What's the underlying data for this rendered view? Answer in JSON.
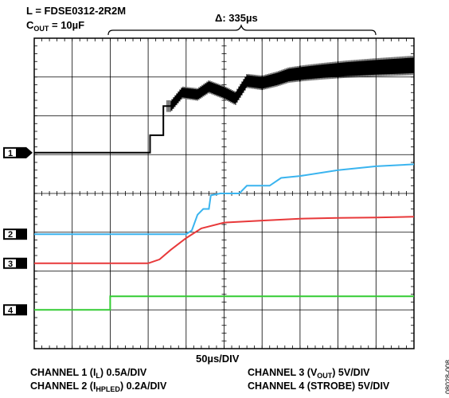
{
  "annotations": {
    "inductor": "L = FDSE0312-2R2M",
    "cout_prefix": "C",
    "cout_sub": "OUT",
    "cout_suffix": " = 10µF",
    "delta": "Δ: 335µs"
  },
  "time_scale": "50µs/DIV",
  "channel_scales": {
    "ch1": {
      "pre": "CHANNEL 1 (I",
      "sub": "L",
      "post": ") 0.5A/DIV"
    },
    "ch2": {
      "pre": "CHANNEL 2 (I",
      "sub": "HPLED",
      "post": ") 0.2A/DIV"
    },
    "ch3": {
      "pre": "CHANNEL 3 (V",
      "sub": "OUT",
      "post": ") 5V/DIV"
    },
    "ch4": {
      "pre": "CHANNEL 4 (STROBE) 5V/DIV",
      "sub": "",
      "post": ""
    }
  },
  "figure_id": "08028-008",
  "chart_data": {
    "type": "line",
    "x_divisions": 10,
    "y_divisions": 8,
    "x_unit": "µs",
    "x_per_div": 50,
    "grid": true,
    "markers": [
      "1",
      "2",
      "3",
      "4"
    ],
    "series": [
      {
        "name": "CHANNEL 1",
        "color": "#000000",
        "zero_div": 5.05,
        "points": [
          [
            0,
            5.05
          ],
          [
            3.05,
            5.05
          ],
          [
            3.05,
            5.5
          ],
          [
            3.4,
            5.5
          ],
          [
            3.4,
            6.25
          ],
          [
            3.6,
            6.25
          ],
          [
            3.9,
            6.6
          ],
          [
            4.3,
            6.55
          ],
          [
            4.6,
            6.75
          ],
          [
            5.0,
            6.6
          ],
          [
            5.3,
            6.45
          ],
          [
            5.6,
            6.9
          ],
          [
            6.0,
            6.85
          ],
          [
            6.4,
            6.95
          ],
          [
            6.7,
            7.05
          ],
          [
            7.1,
            7.1
          ],
          [
            7.6,
            7.15
          ],
          [
            8.2,
            7.2
          ],
          [
            9.0,
            7.25
          ],
          [
            10,
            7.3
          ]
        ],
        "noise_from_div": 3.5
      },
      {
        "name": "CHANNEL 2",
        "color": "#3ab4ef",
        "zero_div": 2.95,
        "points": [
          [
            0,
            2.95
          ],
          [
            4.0,
            2.95
          ],
          [
            4.15,
            3.05
          ],
          [
            4.3,
            3.45
          ],
          [
            4.45,
            3.6
          ],
          [
            4.6,
            3.6
          ],
          [
            4.65,
            3.95
          ],
          [
            4.9,
            4.0
          ],
          [
            5.4,
            4.0
          ],
          [
            5.6,
            4.2
          ],
          [
            6.2,
            4.2
          ],
          [
            6.5,
            4.4
          ],
          [
            7.0,
            4.45
          ],
          [
            8.0,
            4.6
          ],
          [
            9.0,
            4.7
          ],
          [
            10,
            4.75
          ]
        ]
      },
      {
        "name": "CHANNEL 3",
        "color": "#e8393a",
        "zero_div": 2.2,
        "points": [
          [
            0,
            2.2
          ],
          [
            3.0,
            2.2
          ],
          [
            3.3,
            2.3
          ],
          [
            3.6,
            2.55
          ],
          [
            4.0,
            2.85
          ],
          [
            4.4,
            3.1
          ],
          [
            5.0,
            3.25
          ],
          [
            6.0,
            3.3
          ],
          [
            7.0,
            3.35
          ],
          [
            8.0,
            3.37
          ],
          [
            9.0,
            3.38
          ],
          [
            10,
            3.4
          ]
        ]
      },
      {
        "name": "CHANNEL 4",
        "color": "#33cc33",
        "zero_div": 1.0,
        "points": [
          [
            0,
            1.0
          ],
          [
            2.0,
            1.0
          ],
          [
            2.0,
            1.35
          ],
          [
            10,
            1.35
          ]
        ]
      }
    ]
  }
}
